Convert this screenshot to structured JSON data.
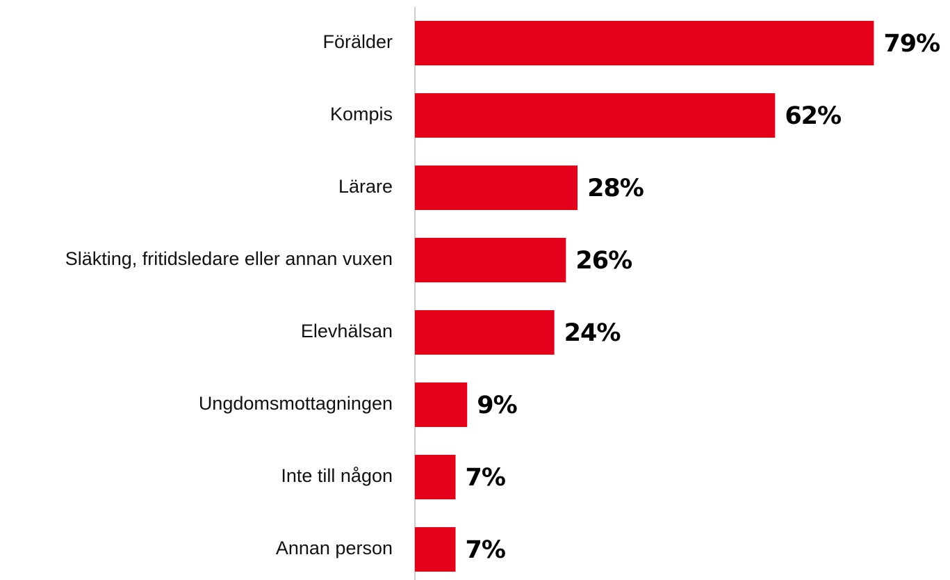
{
  "chart_data": {
    "type": "bar",
    "orientation": "horizontal",
    "categories": [
      "Förälder",
      "Kompis",
      "Lärare",
      "Släkting, fritidsledare eller annan vuxen",
      "Elevhälsan",
      "Ungdomsmottagningen",
      "Inte till någon",
      "Annan person"
    ],
    "values": [
      79,
      62,
      28,
      26,
      24,
      9,
      7,
      7
    ],
    "value_labels": [
      "79%",
      "62%",
      "28%",
      "26%",
      "24%",
      "9%",
      "7%",
      "7%"
    ],
    "color": "#e2001a"
  }
}
